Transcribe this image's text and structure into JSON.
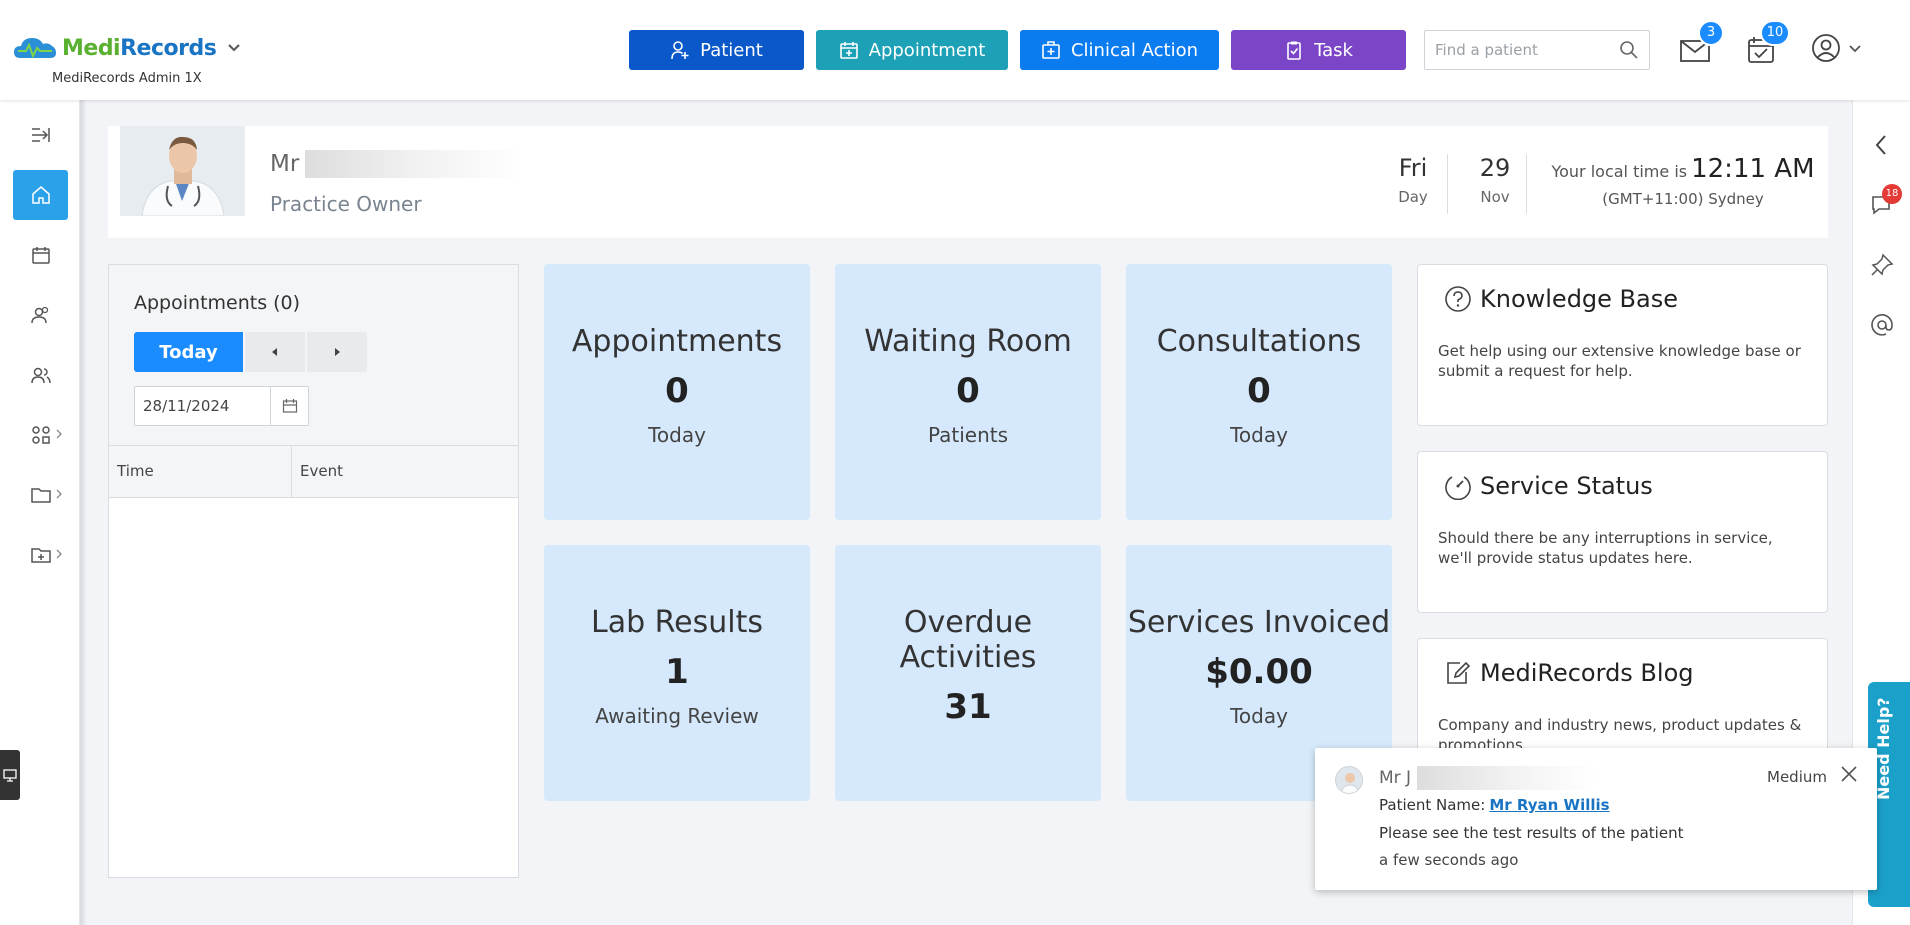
{
  "app": {
    "brand_part1": "Medi",
    "brand_part2": "Records",
    "org": "MediRecords Admin 1X",
    "brand_green": "#5ab031",
    "brand_blue": "#1a74c4"
  },
  "quick_actions": [
    {
      "label": "Patient",
      "icon": "add-user-icon",
      "color": "#0a58c9"
    },
    {
      "label": "Appointment",
      "icon": "calendar-plus-icon",
      "color": "#1da1b7"
    },
    {
      "label": "Clinical Action",
      "icon": "medical-kit-icon",
      "color": "#0b7cf0"
    },
    {
      "label": "Task",
      "icon": "clipboard-check-icon",
      "color": "#7b45c7"
    }
  ],
  "search": {
    "placeholder": "Find a patient"
  },
  "notifications": {
    "mail_count": "3",
    "calendar_count": "10"
  },
  "sidebar": {
    "items": [
      {
        "name": "expand",
        "icon": "expand-menu-icon"
      },
      {
        "name": "home",
        "icon": "home-icon",
        "active": true
      },
      {
        "name": "calendar",
        "icon": "calendar-icon"
      },
      {
        "name": "patients",
        "icon": "patients-icon"
      },
      {
        "name": "users",
        "icon": "users-icon"
      },
      {
        "name": "modules",
        "icon": "modules-icon"
      },
      {
        "name": "folders",
        "icon": "folder-icon"
      },
      {
        "name": "add-folder",
        "icon": "folder-plus-icon"
      }
    ]
  },
  "right_rail": {
    "chat_badge": "18",
    "need_help": "Need Help?"
  },
  "profile": {
    "salutation": "Mr",
    "role": "Practice Owner",
    "day_name": "Fri",
    "day_label": "Day",
    "day_number": "29",
    "month_label": "Nov",
    "time_prefix": "Your local time is",
    "time": "12:11 AM",
    "timezone": "(GMT+11:00) Sydney"
  },
  "appointments_panel": {
    "title": "Appointments (0)",
    "today_label": "Today",
    "date_value": "28/11/2024",
    "col_time": "Time",
    "col_event": "Event"
  },
  "tiles": [
    {
      "title": "Appointments",
      "value": "0",
      "sub": "Today"
    },
    {
      "title": "Waiting Room",
      "value": "0",
      "sub": "Patients"
    },
    {
      "title": "Consultations",
      "value": "0",
      "sub": "Today"
    },
    {
      "title": "Lab Results",
      "value": "1",
      "sub": "Awaiting Review"
    },
    {
      "title": "Overdue Activities",
      "value": "31",
      "sub": ""
    },
    {
      "title": "Services Invoiced",
      "value": "$0.00",
      "sub": "Today"
    }
  ],
  "cards": [
    {
      "title": "Knowledge Base",
      "icon": "help-circle-icon",
      "desc": "Get help using our extensive knowledge base or submit a request for help."
    },
    {
      "title": "Service Status",
      "icon": "speedometer-icon",
      "desc": "Should there be any interruptions in service, we'll provide status updates here."
    },
    {
      "title": "MediRecords Blog",
      "icon": "edit-note-icon",
      "desc": "Company and industry news, product updates & promotions"
    }
  ],
  "toast": {
    "sender": "Mr J",
    "priority": "Medium",
    "patient_label": "Patient Name:",
    "patient_name": "Mr Ryan Willis",
    "message": "Please see the test results of the patient",
    "time_ago": "a few seconds ago"
  }
}
